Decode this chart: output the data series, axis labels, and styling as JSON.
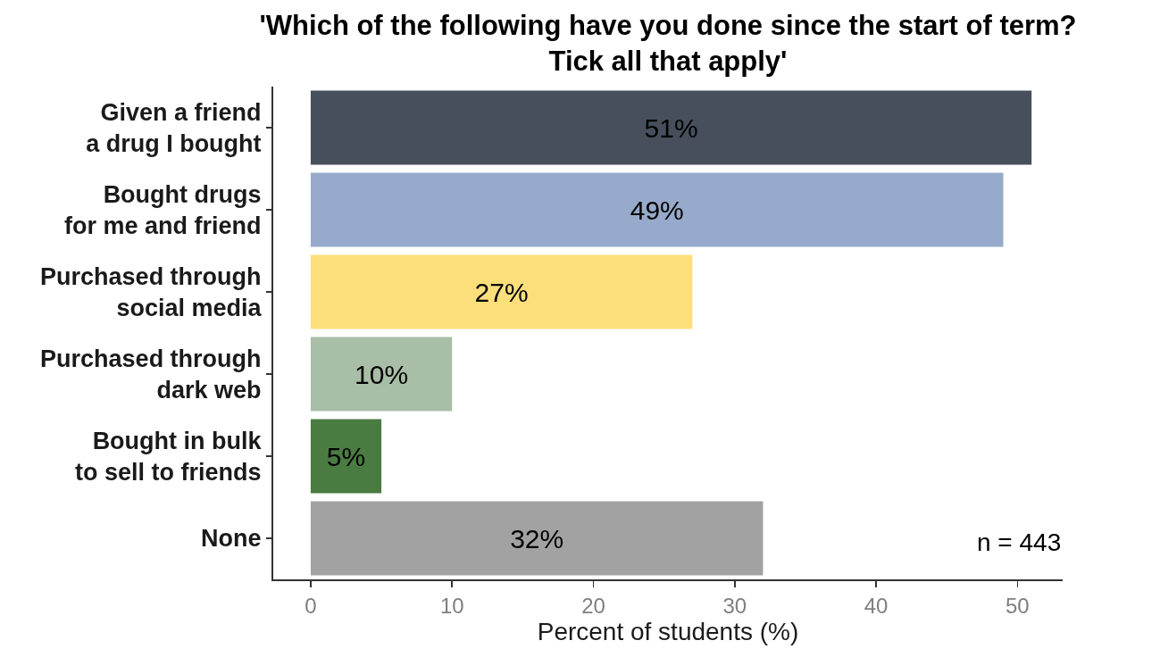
{
  "chart_data": {
    "type": "bar",
    "orientation": "horizontal",
    "title": "'Which of the following have you done since the start of term?\nTick all that apply'",
    "xlabel": "Percent of students (%)",
    "categories": [
      "Given a friend\na drug I bought",
      "Bought drugs\nfor me and friend",
      "Purchased through\nsocial media",
      "Purchased through\ndark web",
      "Bought in bulk\nto sell to friends",
      "None"
    ],
    "values": [
      51,
      49,
      27,
      10,
      5,
      32
    ],
    "value_labels": [
      "51%",
      "49%",
      "27%",
      "10%",
      "5%",
      "32%"
    ],
    "colors": [
      "#464f5b",
      "#97aacb",
      "#fcdf7b",
      "#a8bea6",
      "#4a7c42",
      "#a2a2a2"
    ],
    "xlim": [
      -2.65,
      53.2
    ],
    "xticks": [
      0,
      10,
      20,
      30,
      40,
      50
    ],
    "annotations": [
      "n = 443"
    ]
  }
}
